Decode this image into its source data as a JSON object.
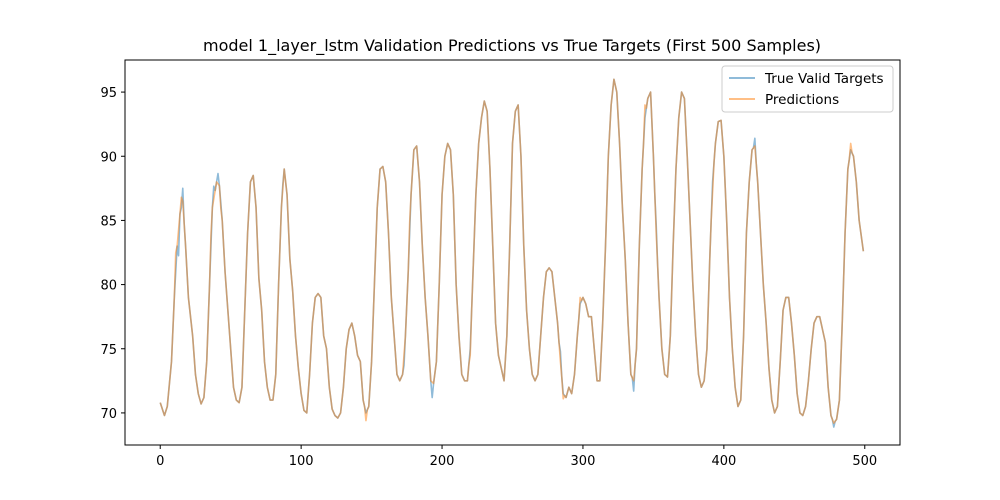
{
  "chart_data": {
    "type": "line",
    "title": "model 1_layer_lstm Validation Predictions vs True Targets (First 500 Samples)",
    "xlabel": "",
    "ylabel": "",
    "xlim": [
      -25,
      525
    ],
    "ylim": [
      67.5,
      97.5
    ],
    "x_ticks": [
      0,
      100,
      200,
      300,
      400,
      500
    ],
    "y_ticks": [
      70,
      75,
      80,
      85,
      90,
      95
    ],
    "grid": false,
    "legend_position": "top-right",
    "keypoints": [
      [
        0,
        70.8
      ],
      [
        3,
        69.8
      ],
      [
        5,
        70.5
      ],
      [
        8,
        74
      ],
      [
        10,
        79
      ],
      [
        12,
        83
      ],
      [
        14,
        85.5
      ],
      [
        16,
        86.5
      ],
      [
        18,
        83
      ],
      [
        20,
        79
      ],
      [
        23,
        76
      ],
      [
        25,
        73
      ],
      [
        27,
        71.5
      ],
      [
        29,
        70.7
      ],
      [
        31,
        71.2
      ],
      [
        33,
        74
      ],
      [
        35,
        80
      ],
      [
        37,
        86
      ],
      [
        40,
        88
      ],
      [
        42,
        87.7
      ],
      [
        44,
        85
      ],
      [
        46,
        81
      ],
      [
        48,
        78
      ],
      [
        50,
        75
      ],
      [
        52,
        72
      ],
      [
        54,
        71
      ],
      [
        56,
        70.8
      ],
      [
        58,
        72
      ],
      [
        60,
        78
      ],
      [
        62,
        84
      ],
      [
        64,
        88
      ],
      [
        66,
        88.5
      ],
      [
        68,
        86
      ],
      [
        70,
        80.5
      ],
      [
        72,
        78
      ],
      [
        74,
        74
      ],
      [
        76,
        72
      ],
      [
        78,
        71
      ],
      [
        80,
        71
      ],
      [
        82,
        73
      ],
      [
        84,
        80
      ],
      [
        86,
        86
      ],
      [
        88,
        89
      ],
      [
        90,
        87
      ],
      [
        92,
        82
      ],
      [
        94,
        79.5
      ],
      [
        96,
        76
      ],
      [
        98,
        73.5
      ],
      [
        100,
        71.5
      ],
      [
        102,
        70.2
      ],
      [
        104,
        70
      ],
      [
        106,
        73
      ],
      [
        108,
        77
      ],
      [
        110,
        79
      ],
      [
        112,
        79.3
      ],
      [
        114,
        79
      ],
      [
        116,
        76
      ],
      [
        118,
        75
      ],
      [
        120,
        72
      ],
      [
        122,
        70.3
      ],
      [
        124,
        69.8
      ],
      [
        126,
        69.6
      ],
      [
        128,
        70
      ],
      [
        130,
        72
      ],
      [
        132,
        75
      ],
      [
        134,
        76.5
      ],
      [
        136,
        77
      ],
      [
        138,
        76
      ],
      [
        140,
        74.5
      ],
      [
        142,
        74
      ],
      [
        144,
        71
      ],
      [
        146,
        70
      ],
      [
        148,
        70.5
      ],
      [
        150,
        74
      ],
      [
        152,
        80
      ],
      [
        154,
        86
      ],
      [
        156,
        89
      ],
      [
        158,
        89.2
      ],
      [
        160,
        88
      ],
      [
        162,
        84
      ],
      [
        164,
        79
      ],
      [
        166,
        76
      ],
      [
        168,
        73
      ],
      [
        170,
        72.5
      ],
      [
        172,
        73
      ],
      [
        174,
        76
      ],
      [
        176,
        81
      ],
      [
        178,
        87
      ],
      [
        180,
        90.5
      ],
      [
        182,
        90.8
      ],
      [
        184,
        88
      ],
      [
        186,
        83
      ],
      [
        188,
        79
      ],
      [
        190,
        76
      ],
      [
        192,
        72.5
      ],
      [
        194,
        72.3
      ],
      [
        196,
        74
      ],
      [
        198,
        80
      ],
      [
        200,
        87
      ],
      [
        202,
        90
      ],
      [
        204,
        91
      ],
      [
        206,
        90.5
      ],
      [
        208,
        87
      ],
      [
        210,
        80
      ],
      [
        212,
        76
      ],
      [
        214,
        73
      ],
      [
        216,
        72.5
      ],
      [
        218,
        72.5
      ],
      [
        220,
        75
      ],
      [
        222,
        81
      ],
      [
        224,
        87
      ],
      [
        226,
        91
      ],
      [
        228,
        93
      ],
      [
        230,
        94.3
      ],
      [
        232,
        93.5
      ],
      [
        234,
        89
      ],
      [
        236,
        83
      ],
      [
        238,
        77
      ],
      [
        240,
        74.5
      ],
      [
        242,
        73.5
      ],
      [
        244,
        72.5
      ],
      [
        246,
        76
      ],
      [
        248,
        83
      ],
      [
        250,
        91
      ],
      [
        252,
        93.5
      ],
      [
        254,
        94
      ],
      [
        256,
        90
      ],
      [
        258,
        83
      ],
      [
        260,
        78
      ],
      [
        262,
        75
      ],
      [
        264,
        73
      ],
      [
        266,
        72.5
      ],
      [
        268,
        73
      ],
      [
        270,
        76
      ],
      [
        272,
        79
      ],
      [
        274,
        81
      ],
      [
        276,
        81.3
      ],
      [
        278,
        81
      ],
      [
        280,
        79
      ],
      [
        282,
        77
      ],
      [
        284,
        74
      ],
      [
        286,
        71.5
      ],
      [
        288,
        71.2
      ],
      [
        290,
        72
      ],
      [
        292,
        71.5
      ],
      [
        294,
        73
      ],
      [
        296,
        76
      ],
      [
        298,
        78.5
      ],
      [
        300,
        79
      ],
      [
        302,
        78.5
      ],
      [
        304,
        77.5
      ],
      [
        306,
        77.5
      ],
      [
        308,
        75
      ],
      [
        310,
        72.5
      ],
      [
        312,
        72.5
      ],
      [
        314,
        77
      ],
      [
        316,
        83
      ],
      [
        318,
        90
      ],
      [
        320,
        94
      ],
      [
        322,
        96
      ],
      [
        324,
        95
      ],
      [
        326,
        91
      ],
      [
        328,
        86
      ],
      [
        330,
        82
      ],
      [
        332,
        77
      ],
      [
        334,
        73
      ],
      [
        336,
        72.5
      ],
      [
        338,
        75
      ],
      [
        340,
        83
      ],
      [
        342,
        89
      ],
      [
        344,
        93
      ],
      [
        346,
        94.5
      ],
      [
        348,
        95
      ],
      [
        350,
        90
      ],
      [
        352,
        84
      ],
      [
        354,
        79
      ],
      [
        356,
        75
      ],
      [
        358,
        73
      ],
      [
        360,
        72.8
      ],
      [
        362,
        76
      ],
      [
        364,
        83
      ],
      [
        366,
        89
      ],
      [
        368,
        93
      ],
      [
        370,
        95
      ],
      [
        372,
        94.5
      ],
      [
        374,
        90
      ],
      [
        376,
        85
      ],
      [
        378,
        80
      ],
      [
        380,
        76
      ],
      [
        382,
        73
      ],
      [
        384,
        72
      ],
      [
        386,
        72.5
      ],
      [
        388,
        75
      ],
      [
        390,
        82
      ],
      [
        392,
        88
      ],
      [
        394,
        91
      ],
      [
        396,
        92.7
      ],
      [
        398,
        92.8
      ],
      [
        400,
        90
      ],
      [
        402,
        85
      ],
      [
        404,
        79
      ],
      [
        406,
        75
      ],
      [
        408,
        72
      ],
      [
        410,
        70.5
      ],
      [
        412,
        71
      ],
      [
        414,
        76
      ],
      [
        416,
        84
      ],
      [
        418,
        88
      ],
      [
        420,
        90.5
      ],
      [
        422,
        90.8
      ],
      [
        424,
        88
      ],
      [
        426,
        84
      ],
      [
        428,
        80
      ],
      [
        430,
        77
      ],
      [
        432,
        73.5
      ],
      [
        434,
        71
      ],
      [
        436,
        70
      ],
      [
        438,
        70.5
      ],
      [
        440,
        74
      ],
      [
        442,
        78
      ],
      [
        444,
        79
      ],
      [
        446,
        79
      ],
      [
        448,
        77
      ],
      [
        450,
        74.5
      ],
      [
        452,
        71.5
      ],
      [
        454,
        70
      ],
      [
        456,
        69.8
      ],
      [
        458,
        70.5
      ],
      [
        460,
        72.5
      ],
      [
        462,
        75
      ],
      [
        464,
        77
      ],
      [
        466,
        77.5
      ],
      [
        468,
        77.5
      ],
      [
        470,
        76.5
      ],
      [
        472,
        75.5
      ],
      [
        474,
        72
      ],
      [
        476,
        69.8
      ],
      [
        478,
        69.2
      ],
      [
        480,
        69.5
      ],
      [
        482,
        71
      ],
      [
        484,
        77
      ],
      [
        486,
        84
      ],
      [
        488,
        89
      ],
      [
        490,
        90.5
      ],
      [
        492,
        90
      ],
      [
        494,
        88
      ],
      [
        496,
        85
      ],
      [
        499,
        82.6
      ]
    ],
    "series": [
      {
        "name": "True Valid Targets",
        "color": "#1f77b4",
        "opacity": 0.5,
        "spikes": [
          [
            13,
            -2.0
          ],
          [
            16,
            1.0
          ],
          [
            38,
            1.0
          ],
          [
            41,
            0.8
          ],
          [
            87,
            0.3
          ],
          [
            173,
            -0.8
          ],
          [
            193,
            -1.2
          ],
          [
            284,
            0.8
          ],
          [
            336,
            -0.8
          ],
          [
            352,
            0.6
          ],
          [
            422,
            0.6
          ],
          [
            478,
            -0.3
          ]
        ]
      },
      {
        "name": "Predictions",
        "color": "#ff7f0e",
        "opacity": 0.5,
        "spikes": [
          [
            11,
            1.5
          ],
          [
            15,
            0.8
          ],
          [
            36,
            0.8
          ],
          [
            43,
            -0.4
          ],
          [
            146,
            -0.6
          ],
          [
            177,
            0.8
          ],
          [
            220,
            -0.5
          ],
          [
            286,
            -0.4
          ],
          [
            298,
            0.5
          ],
          [
            344,
            1.0
          ],
          [
            392,
            -0.8
          ],
          [
            490,
            0.5
          ]
        ]
      }
    ]
  }
}
